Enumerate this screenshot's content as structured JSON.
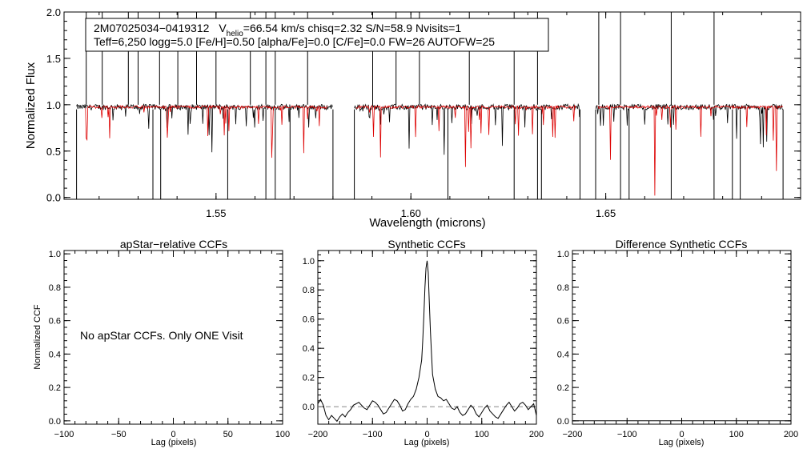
{
  "chart_data": [
    {
      "type": "line",
      "info_line1": {
        "star": "2M07025034−0419312",
        "v": "V",
        "v_sub": "helio",
        "v_rest": "=66.54 km/s  chisq=2.32  S/N=58.9  Nvisits=1"
      },
      "info_line2": "Teff=6,250 logg=5.0 [Fe/H]=0.50 [alpha/Fe]=0.0 [C/Fe]=0.0 FW=26 AUTOFW=25",
      "xlabel": "Wavelength (microns)",
      "ylabel": "Normalized Flux",
      "xlim": [
        1.511,
        1.7
      ],
      "ylim": [
        -0.02,
        2.0
      ],
      "x_ticks": [
        "1.55",
        "1.60",
        "1.65"
      ],
      "x_tick_values": [
        1.55,
        1.6,
        1.65
      ],
      "y_ticks": [
        "0.0",
        "0.5",
        "1.0",
        "1.5",
        "2.0"
      ],
      "y_tick_values": [
        0.0,
        0.5,
        1.0,
        1.5,
        2.0
      ],
      "chip_ranges": [
        [
          1.5142,
          1.58
        ],
        [
          1.5855,
          1.6434
        ],
        [
          1.6474,
          1.6955
        ]
      ],
      "model_range": [
        [
          1.5165,
          1.5785
        ],
        [
          1.586,
          1.6425
        ],
        [
          1.648,
          1.6955
        ]
      ],
      "observed_color": "#000000",
      "model_color": "#dd0000",
      "spikes_up": [
        1.5167,
        1.5208,
        1.5275,
        1.53,
        1.5355,
        1.5402,
        1.545,
        1.55,
        1.5588,
        1.5628,
        1.5652,
        1.5735,
        1.5902,
        1.5962,
        1.6022,
        1.615,
        1.6265,
        1.6325,
        1.6482,
        1.6538,
        1.6668,
        1.6778
      ],
      "spikes_down": [
        1.5142,
        1.5338,
        1.5358,
        1.553,
        1.5628,
        1.5652,
        1.569,
        1.58,
        1.5855,
        1.6095,
        1.6265,
        1.6325,
        1.6335,
        1.6434,
        1.6474,
        1.6538,
        1.656,
        1.6668,
        1.6778,
        1.6825,
        1.6845,
        1.6955
      ]
    },
    {
      "type": "line",
      "title": "apStar−relative CCFs",
      "xlabel": "Lag (pixels)",
      "ylabel": "Normalized CCF",
      "xlim": [
        -100,
        100
      ],
      "ylim": [
        -0.02,
        1.02
      ],
      "x_ticks": [
        "−100",
        "−50",
        "0",
        "50",
        "100"
      ],
      "x_tick_values": [
        -100,
        -50,
        0,
        50,
        100
      ],
      "y_ticks": [
        "0.0",
        "0.2",
        "0.4",
        "0.6",
        "0.8",
        "1.0"
      ],
      "y_tick_values": [
        0.0,
        0.2,
        0.4,
        0.6,
        0.8,
        1.0
      ],
      "annotation": "No apStar CCFs.  Only ONE Visit"
    },
    {
      "type": "line",
      "title": "Synthetic CCFs",
      "xlabel": "Lag (pixels)",
      "xlim": [
        -200,
        200
      ],
      "ylim": [
        -0.12,
        1.07
      ],
      "x_ticks": [
        "−200",
        "−100",
        "0",
        "100",
        "200"
      ],
      "x_tick_values": [
        -200,
        -100,
        0,
        100,
        200
      ],
      "y_ticks": [
        "0.0",
        "0.2",
        "0.4",
        "0.6",
        "0.8",
        "1.0"
      ],
      "y_tick_values": [
        0.0,
        0.2,
        0.4,
        0.6,
        0.8,
        1.0
      ],
      "zero_line_dashed": true,
      "series": [
        {
          "x": [
            -200,
            -195,
            -190,
            -185,
            -180,
            -175,
            -170,
            -165,
            -160,
            -155,
            -150,
            -145,
            -140,
            -135,
            -130,
            -125,
            -120,
            -115,
            -110,
            -105,
            -100,
            -95,
            -90,
            -85,
            -80,
            -75,
            -70,
            -65,
            -60,
            -55,
            -50,
            -45,
            -40,
            -35,
            -30,
            -25,
            -20,
            -15,
            -10,
            -8,
            -6,
            -4,
            -2,
            0,
            2,
            4,
            6,
            8,
            10,
            15,
            20,
            25,
            30,
            35,
            40,
            45,
            50,
            55,
            60,
            65,
            70,
            75,
            80,
            85,
            90,
            95,
            100,
            105,
            110,
            115,
            120,
            125,
            130,
            135,
            140,
            145,
            150,
            155,
            160,
            165,
            170,
            175,
            180,
            185,
            190,
            195,
            200
          ],
          "y": [
            0.02,
            0.05,
            0.01,
            -0.06,
            -0.09,
            -0.06,
            -0.08,
            -0.1,
            -0.07,
            -0.05,
            -0.07,
            -0.04,
            -0.02,
            0.01,
            0.02,
            0.03,
            0.01,
            -0.01,
            -0.02,
            0.01,
            0.04,
            0.03,
            0.01,
            -0.02,
            -0.05,
            -0.04,
            -0.01,
            0.02,
            0.05,
            0.04,
            0.01,
            -0.03,
            -0.02,
            0.02,
            0.05,
            0.07,
            0.12,
            0.2,
            0.32,
            0.45,
            0.62,
            0.82,
            0.95,
            1.0,
            0.92,
            0.72,
            0.52,
            0.36,
            0.22,
            0.12,
            0.07,
            0.06,
            0.04,
            0.05,
            0.02,
            -0.01,
            -0.02,
            0.0,
            -0.04,
            -0.06,
            -0.05,
            -0.02,
            0.01,
            -0.01,
            -0.05,
            -0.07,
            -0.04,
            -0.01,
            0.01,
            -0.03,
            -0.05,
            -0.07,
            -0.08,
            -0.05,
            -0.02,
            0.01,
            0.03,
            0.0,
            -0.03,
            -0.01,
            0.02,
            0.03,
            0.01,
            -0.02,
            0.0,
            0.02,
            -0.06
          ]
        }
      ]
    },
    {
      "type": "line",
      "title": "Difference Synthetic CCFs",
      "xlabel": "Lag (pixels)",
      "xlim": [
        -200,
        200
      ],
      "ylim": [
        -0.02,
        1.02
      ],
      "x_ticks": [
        "−200",
        "−100",
        "0",
        "100",
        "200"
      ],
      "x_tick_values": [
        -200,
        -100,
        0,
        100,
        200
      ],
      "y_ticks": [
        "0.0",
        "0.2",
        "0.4",
        "0.6",
        "0.8",
        "1.0"
      ],
      "y_tick_values": [
        0.0,
        0.2,
        0.4,
        0.6,
        0.8,
        1.0
      ],
      "series": [
        {
          "x": [
            -200,
            200
          ],
          "y": [
            0.0,
            0.0
          ]
        }
      ]
    }
  ]
}
